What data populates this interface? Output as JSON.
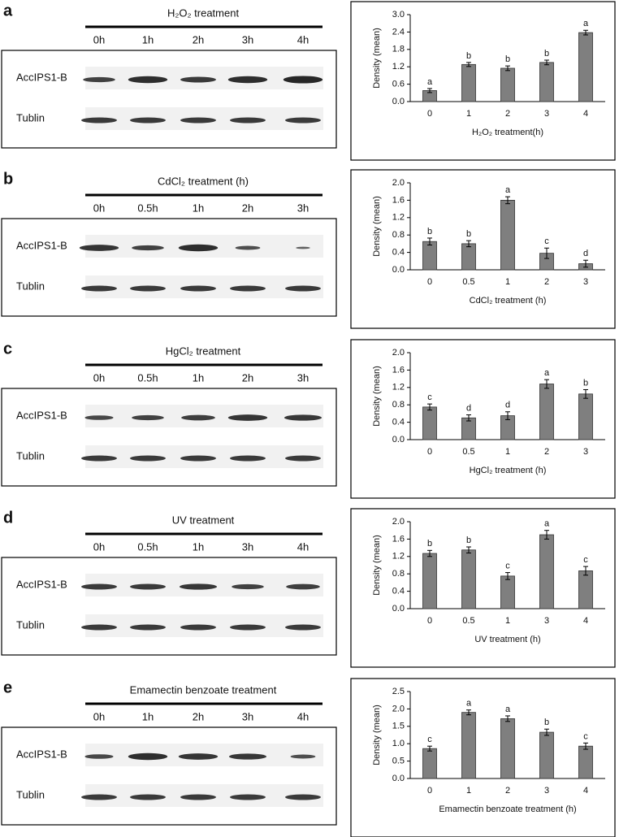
{
  "panels": [
    {
      "letter": "a",
      "blot_title": "H₂O₂ treatment",
      "lanes": [
        "0h",
        "1h",
        "2h",
        "3h",
        "4h"
      ],
      "rows": [
        "AccIPS1-B",
        "Tublin"
      ]
    },
    {
      "letter": "b",
      "blot_title": "CdCl₂ treatment (h)",
      "lanes": [
        "0h",
        "0.5h",
        "1h",
        "2h",
        "3h"
      ],
      "rows": [
        "AccIPS1-B",
        "Tublin"
      ]
    },
    {
      "letter": "c",
      "blot_title": "HgCl₂ treatment",
      "lanes": [
        "0h",
        "0.5h",
        "1h",
        "2h",
        "3h"
      ],
      "rows": [
        "AccIPS1-B",
        "Tublin"
      ]
    },
    {
      "letter": "d",
      "blot_title": "UV treatment",
      "lanes": [
        "0h",
        "0.5h",
        "1h",
        "3h",
        "4h"
      ],
      "rows": [
        "AccIPS1-B",
        "Tublin"
      ]
    },
    {
      "letter": "e",
      "blot_title": "Emamectin benzoate treatment",
      "lanes": [
        "0h",
        "1h",
        "2h",
        "3h",
        "4h"
      ],
      "rows": [
        "AccIPS1-B",
        "Tublin"
      ]
    }
  ],
  "chart_data": [
    {
      "type": "bar",
      "x_label": "H₂O₂ treatment(h)",
      "y_label": "Density (mean)",
      "color": "#7f7f7f",
      "categories": [
        "0",
        "1",
        "2",
        "3",
        "4"
      ],
      "values": [
        0.38,
        1.28,
        1.15,
        1.35,
        2.38
      ],
      "errors": [
        0.07,
        0.07,
        0.08,
        0.08,
        0.08
      ],
      "letters": [
        "a",
        "b",
        "b",
        "b",
        "a"
      ],
      "ylim": [
        0,
        3.0
      ],
      "yticks": [
        {
          "value": 0,
          "label": "0.0"
        },
        {
          "value": 0.6,
          "label": "0.6"
        },
        {
          "value": 1.2,
          "label": "1.2"
        },
        {
          "value": 1.8,
          "label": "1.8"
        },
        {
          "value": 2.4,
          "label": "2.4"
        },
        {
          "value": 3.0,
          "label": "3.0"
        }
      ]
    },
    {
      "type": "bar",
      "x_label": "CdCl₂ treatment (h)",
      "y_label": "Density (mean)",
      "color": "#7f7f7f",
      "categories": [
        "0",
        "0.5",
        "1",
        "2",
        "3"
      ],
      "values": [
        0.65,
        0.6,
        1.6,
        0.38,
        0.14
      ],
      "errors": [
        0.08,
        0.07,
        0.08,
        0.12,
        0.08
      ],
      "letters": [
        "b",
        "b",
        "a",
        "c",
        "d"
      ],
      "ylim": [
        0,
        2.0
      ],
      "yticks": [
        {
          "value": 0,
          "label": "0.0"
        },
        {
          "value": 0.4,
          "label": "0.4"
        },
        {
          "value": 0.8,
          "label": "0.8"
        },
        {
          "value": 1.2,
          "label": "1.2"
        },
        {
          "value": 1.6,
          "label": "1.6"
        },
        {
          "value": 2.0,
          "label": "2.0"
        }
      ]
    },
    {
      "type": "bar",
      "x_label": "HgCl₂ treatment (h)",
      "y_label": "Density (mean)",
      "color": "#7f7f7f",
      "categories": [
        "0",
        "0.5",
        "1",
        "2",
        "3"
      ],
      "values": [
        0.75,
        0.5,
        0.55,
        1.28,
        1.05
      ],
      "errors": [
        0.07,
        0.07,
        0.09,
        0.1,
        0.1
      ],
      "letters": [
        "c",
        "d",
        "d",
        "a",
        "b"
      ],
      "ylim": [
        0,
        2.0
      ],
      "yticks": [
        {
          "value": 0,
          "label": "0.0"
        },
        {
          "value": 0.4,
          "label": "0.4"
        },
        {
          "value": 0.8,
          "label": "0.8"
        },
        {
          "value": 1.2,
          "label": "1.2"
        },
        {
          "value": 1.6,
          "label": "1.6"
        },
        {
          "value": 2.0,
          "label": "2.0"
        }
      ]
    },
    {
      "type": "bar",
      "x_label": "UV treatment (h)",
      "y_label": "Density (mean)",
      "color": "#7f7f7f",
      "categories": [
        "0",
        "0.5",
        "1",
        "3",
        "4"
      ],
      "values": [
        1.27,
        1.35,
        0.75,
        1.7,
        0.87
      ],
      "errors": [
        0.07,
        0.07,
        0.08,
        0.1,
        0.1
      ],
      "letters": [
        "b",
        "b",
        "c",
        "a",
        "c"
      ],
      "ylim": [
        0,
        2.0
      ],
      "yticks": [
        {
          "value": 0,
          "label": "0.0"
        },
        {
          "value": 0.4,
          "label": "0.4"
        },
        {
          "value": 0.8,
          "label": "0.8"
        },
        {
          "value": 1.2,
          "label": "1.2"
        },
        {
          "value": 1.6,
          "label": "1.6"
        },
        {
          "value": 2.0,
          "label": "2.0"
        }
      ]
    },
    {
      "type": "bar",
      "x_label": "Emamectin benzoate treatment (h)",
      "y_label": "Density (mean)",
      "color": "#7f7f7f",
      "categories": [
        "0",
        "1",
        "2",
        "3",
        "4"
      ],
      "values": [
        0.86,
        1.9,
        1.72,
        1.33,
        0.93
      ],
      "errors": [
        0.07,
        0.07,
        0.08,
        0.09,
        0.09
      ],
      "letters": [
        "c",
        "a",
        "a",
        "b",
        "c"
      ],
      "ylim": [
        0,
        2.5
      ],
      "yticks": [
        {
          "value": 0,
          "label": "0.0"
        },
        {
          "value": 0.5,
          "label": "0.5"
        },
        {
          "value": 1.0,
          "label": "1.0"
        },
        {
          "value": 1.5,
          "label": "1.5"
        },
        {
          "value": 2.0,
          "label": "2.0"
        },
        {
          "value": 2.5,
          "label": "2.5"
        }
      ]
    }
  ]
}
